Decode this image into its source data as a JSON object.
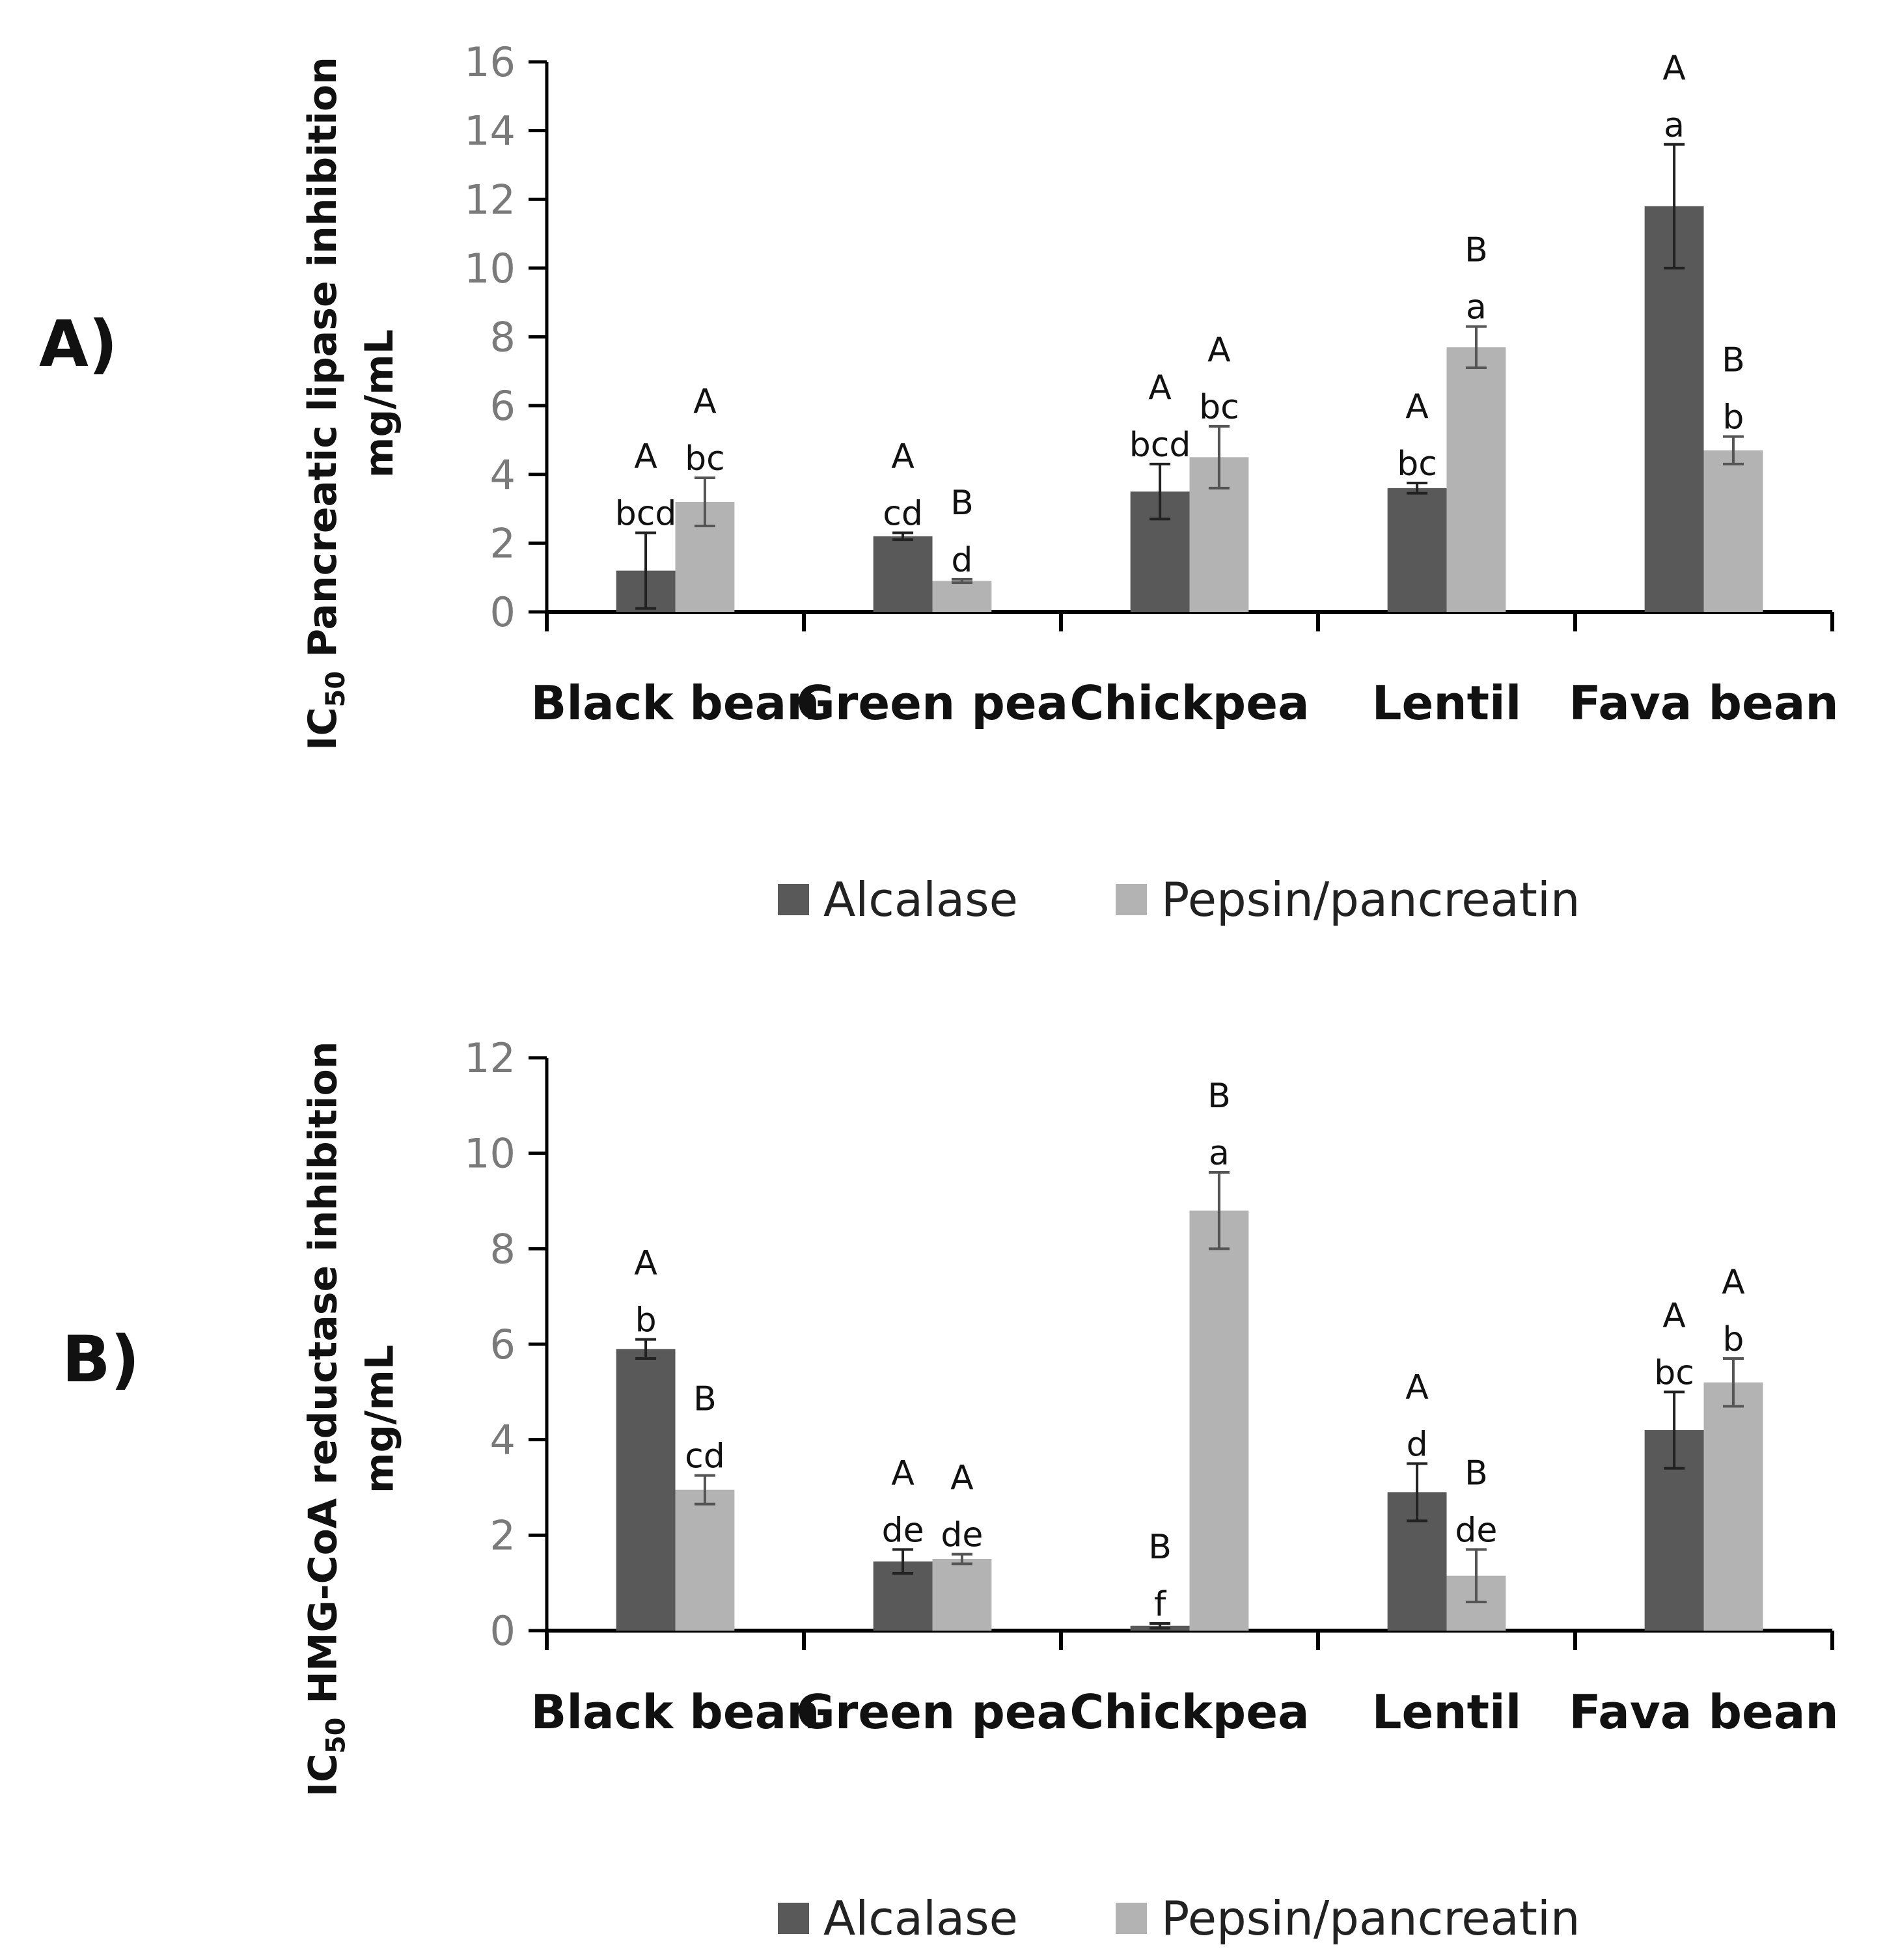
{
  "colors": {
    "alcalase": "#595959",
    "pepsin": "#b3b3b3",
    "axis": "#000000",
    "tick_text": "#7a7a7a",
    "text": "#111111"
  },
  "chart_data": [
    {
      "type": "bar",
      "panel": "A)",
      "title": "",
      "ylabel_lines": [
        "IC50 Pancreatic lipase inhibition",
        "mg/mL"
      ],
      "ylabel_prefix": "IC",
      "ylabel_subscript": "50",
      "ylabel_rest": " Pancreatic lipase inhibition",
      "ylabel_line2": "mg/mL",
      "ylim": [
        0,
        16
      ],
      "yticks": [
        0,
        2,
        4,
        6,
        8,
        10,
        12,
        14,
        16
      ],
      "categories": [
        "Black bean",
        "Green pea",
        "Chickpea",
        "Lentil",
        "Fava bean"
      ],
      "series": [
        {
          "name": "Alcalase",
          "values": [
            1.2,
            2.2,
            3.5,
            3.6,
            11.8
          ],
          "errors": [
            1.1,
            0.1,
            0.8,
            0.15,
            1.8
          ],
          "letters_upper": [
            "A",
            "A",
            "A",
            "A",
            "A"
          ],
          "letters_lower": [
            "bcd",
            "cd",
            "bcd",
            "bc",
            "a"
          ]
        },
        {
          "name": "Pepsin/pancreatin",
          "values": [
            3.2,
            0.9,
            4.5,
            7.7,
            4.7
          ],
          "errors": [
            0.7,
            0.05,
            0.9,
            0.6,
            0.4
          ],
          "letters_upper": [
            "A",
            "B",
            "A",
            "B",
            "B"
          ],
          "letters_lower": [
            "bc",
            "d",
            "bc",
            "a",
            "b"
          ]
        }
      ],
      "legend": [
        "Alcalase",
        "Pepsin/pancreatin"
      ],
      "legend_position": "bottom-center",
      "grid": false
    },
    {
      "type": "bar",
      "panel": "B)",
      "title": "",
      "ylabel_lines": [
        "IC50 HMG-CoA reductase inhibition",
        "mg/mL"
      ],
      "ylabel_prefix": "IC",
      "ylabel_subscript": "50",
      "ylabel_rest": " HMG-CoA reductase inhibition",
      "ylabel_line2": "mg/mL",
      "ylim": [
        0,
        12
      ],
      "yticks": [
        0,
        2,
        4,
        6,
        8,
        10,
        12
      ],
      "categories": [
        "Black bean",
        "Green pea",
        "Chickpea",
        "Lentil",
        "Fava bean"
      ],
      "series": [
        {
          "name": "Alcalase",
          "values": [
            5.9,
            1.45,
            0.1,
            2.9,
            4.2
          ],
          "errors": [
            0.2,
            0.25,
            0.05,
            0.6,
            0.8
          ],
          "letters_upper": [
            "A",
            "A",
            "B",
            "A",
            "A"
          ],
          "letters_lower": [
            "b",
            "de",
            "f",
            "d",
            "bc"
          ]
        },
        {
          "name": "Pepsin/pancreatin",
          "values": [
            2.95,
            1.5,
            8.8,
            1.15,
            5.2
          ],
          "errors": [
            0.3,
            0.1,
            0.8,
            0.55,
            0.5
          ],
          "letters_upper": [
            "B",
            "A",
            "B",
            "B",
            "A"
          ],
          "letters_lower": [
            "cd",
            "de",
            "a",
            "de",
            "b"
          ]
        }
      ],
      "legend": [
        "Alcalase",
        "Pepsin/pancreatin"
      ],
      "legend_position": "bottom-center",
      "grid": false
    }
  ]
}
